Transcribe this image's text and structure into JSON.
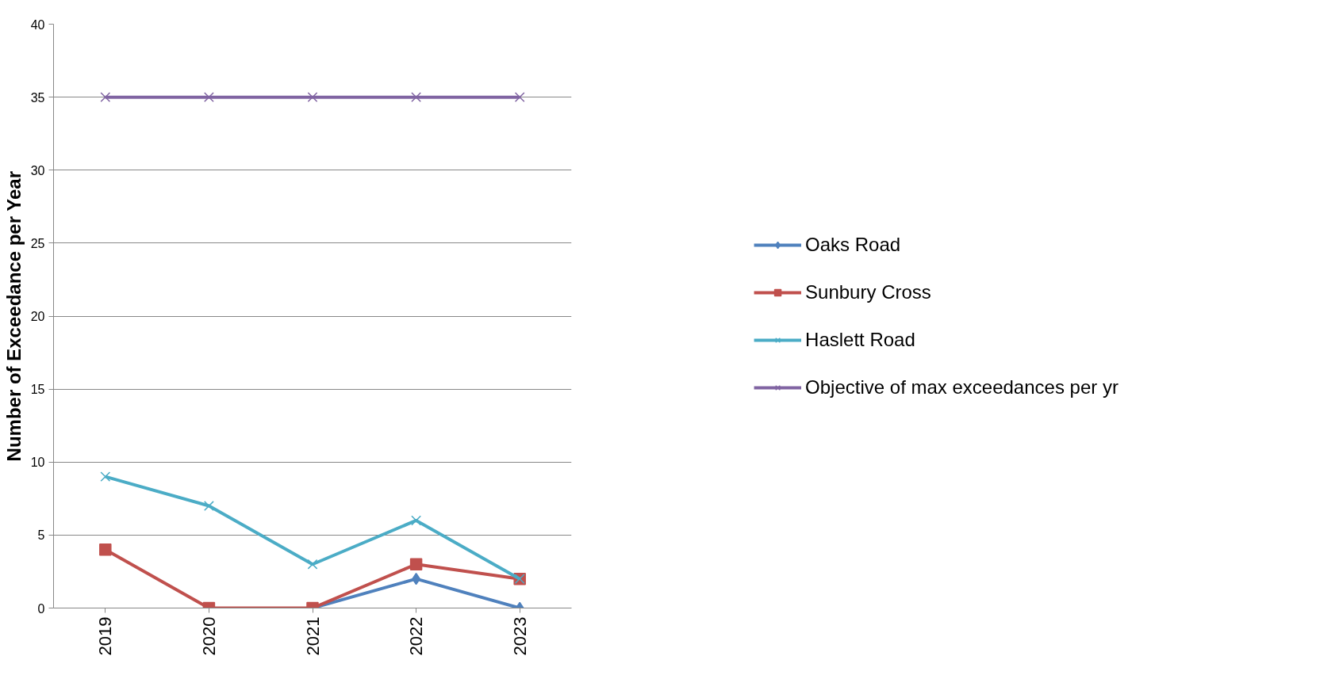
{
  "chart_data": {
    "type": "line",
    "ylabel": "Number of Exceedance per Year",
    "categories": [
      "2019",
      "2020",
      "2021",
      "2022",
      "2023"
    ],
    "series": [
      {
        "name": "Oaks Road",
        "color": "#4f81bd",
        "marker": "diamond",
        "values": [
          null,
          null,
          0,
          2,
          0
        ]
      },
      {
        "name": "Sunbury Cross",
        "color": "#c0504d",
        "marker": "square",
        "values": [
          4,
          0,
          0,
          3,
          2
        ]
      },
      {
        "name": "Haslett Road",
        "color": "#4bacc6",
        "marker": "cross",
        "values": [
          9,
          7,
          3,
          6,
          2
        ]
      },
      {
        "name": "Objective of max exceedances per yr",
        "color": "#8064a2",
        "marker": "cross",
        "values": [
          35,
          35,
          35,
          35,
          35
        ]
      }
    ],
    "ylim": [
      0,
      40
    ],
    "yticks": [
      0,
      5,
      10,
      15,
      20,
      25,
      30,
      35,
      40
    ],
    "grid": "y",
    "legend": "right"
  }
}
